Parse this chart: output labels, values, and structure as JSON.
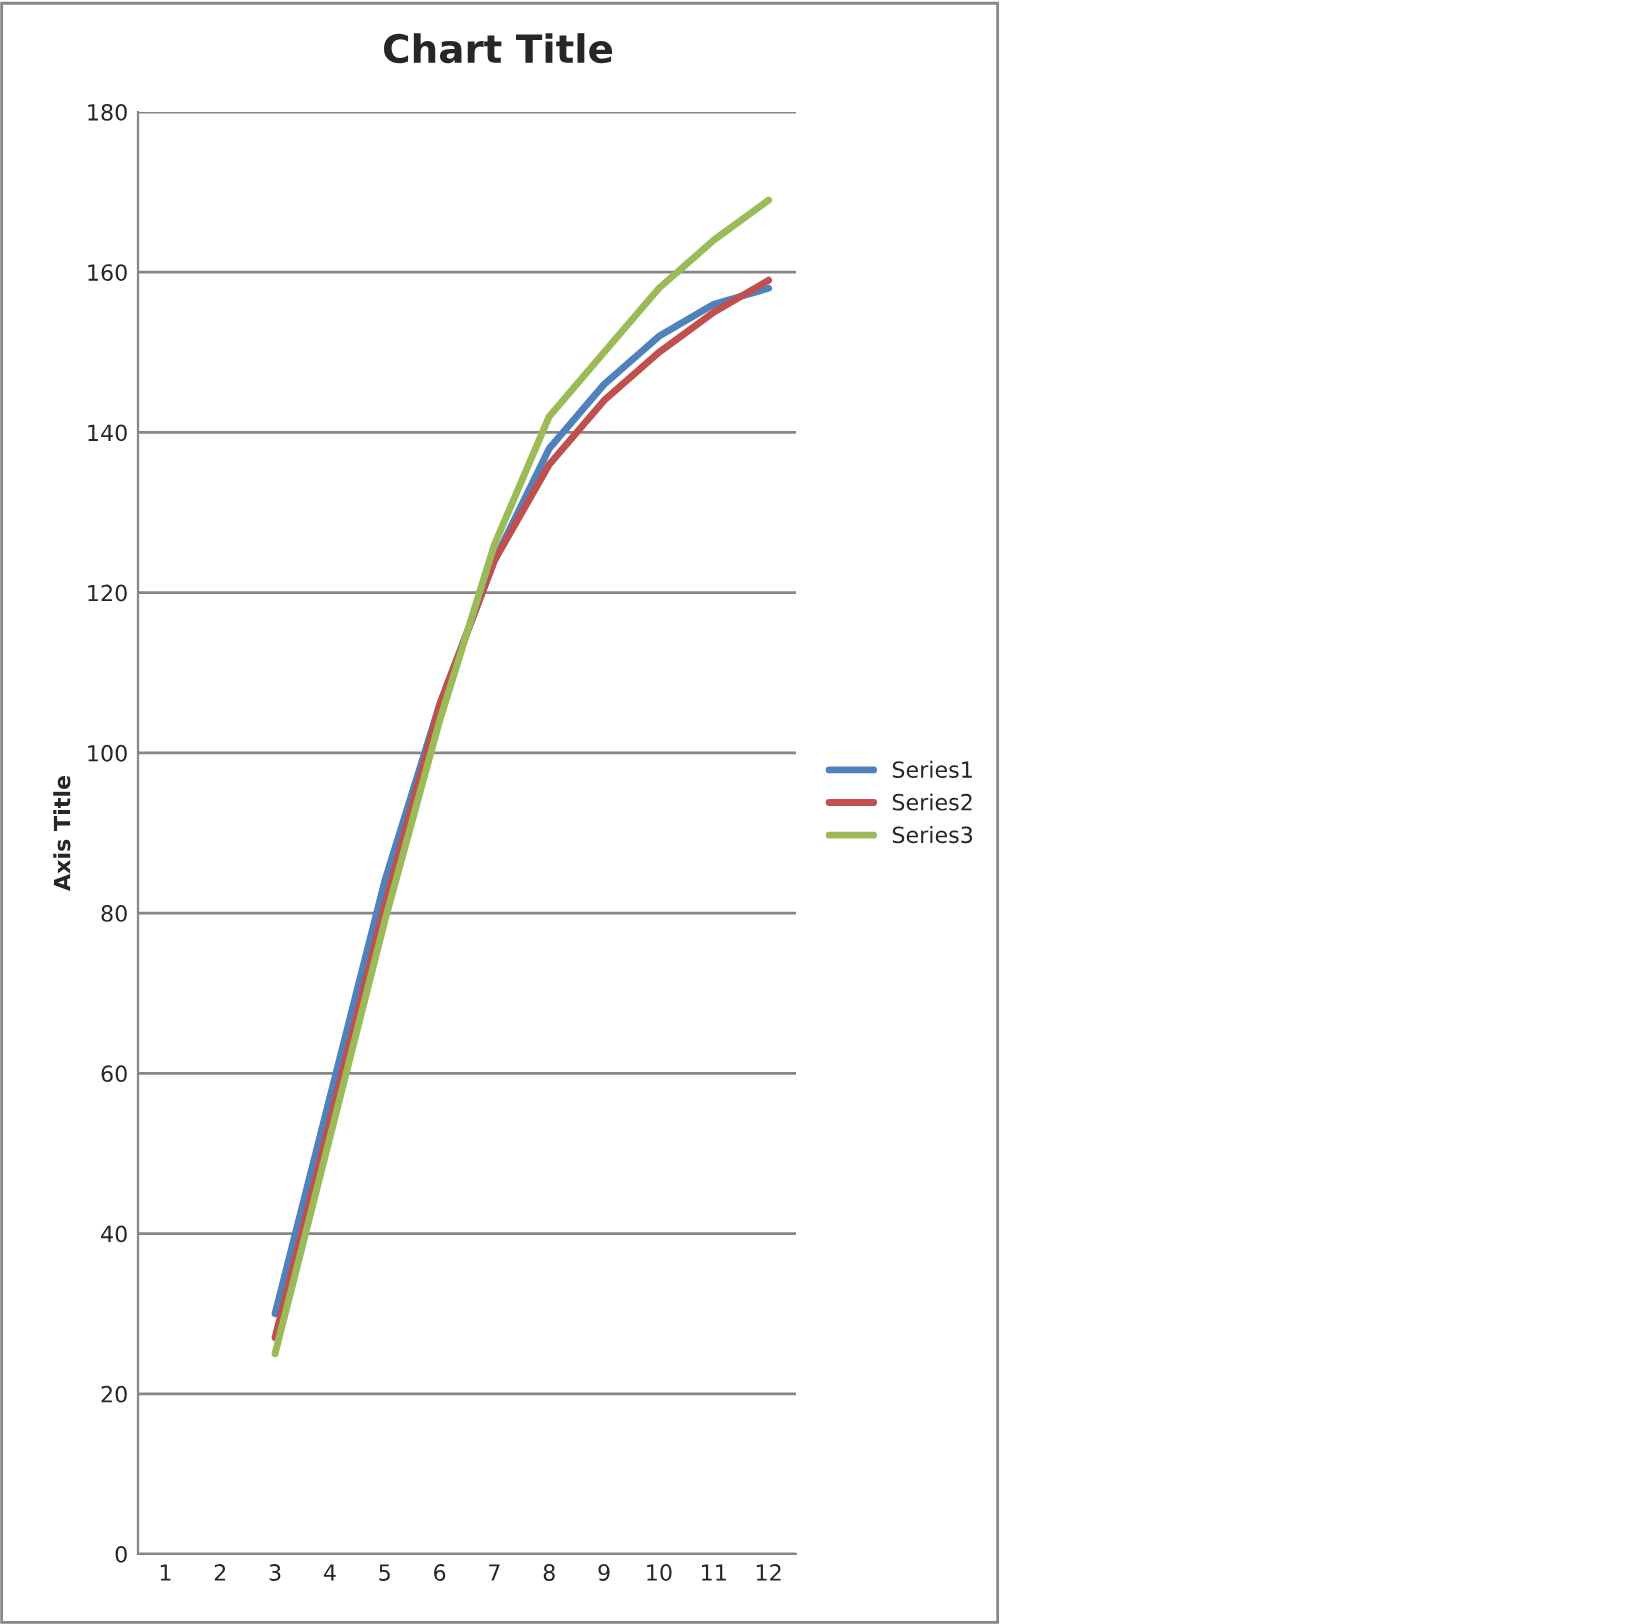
{
  "chart_data": {
    "type": "line",
    "title": "Chart Title",
    "ylabel": "Axis Title",
    "categories": [
      "1",
      "2",
      "3",
      "4",
      "5",
      "6",
      "7",
      "8",
      "9",
      "10",
      "11",
      "12"
    ],
    "series": [
      {
        "name": "Series1",
        "color": "#4f81bd",
        "values": [
          null,
          null,
          30,
          57,
          84,
          106,
          124,
          138,
          146,
          152,
          156,
          158
        ]
      },
      {
        "name": "Series2",
        "color": "#c0504d",
        "values": [
          null,
          null,
          27,
          54,
          81,
          106,
          124,
          136,
          144,
          150,
          155,
          159
        ]
      },
      {
        "name": "Series3",
        "color": "#9bbb59",
        "values": [
          null,
          null,
          25,
          52,
          79,
          104,
          126,
          142,
          150,
          158,
          164,
          169
        ]
      }
    ],
    "ylim": [
      0,
      180
    ],
    "yticks": [
      0,
      20,
      40,
      60,
      80,
      100,
      120,
      140,
      160,
      180
    ],
    "grid": "y",
    "legend": "right",
    "line_style": "solid",
    "marker": "none"
  }
}
